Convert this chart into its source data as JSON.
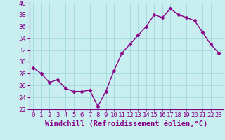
{
  "x": [
    0,
    1,
    2,
    3,
    4,
    5,
    6,
    7,
    8,
    9,
    10,
    11,
    12,
    13,
    14,
    15,
    16,
    17,
    18,
    19,
    20,
    21,
    22,
    23
  ],
  "y": [
    29,
    28,
    26.5,
    27,
    25.5,
    25,
    25,
    25.2,
    22.5,
    25,
    28.5,
    31.5,
    33,
    34.5,
    36,
    38,
    37.5,
    39,
    38,
    37.5,
    37,
    35,
    33,
    31.5
  ],
  "line_color": "#880088",
  "marker": "D",
  "marker_size": 2.5,
  "background_color": "#c8eef0",
  "grid_color": "#a0d8dc",
  "xlabel": "Windchill (Refroidissement éolien,°C)",
  "xlabel_fontsize": 7.5,
  "tick_fontsize": 6.5,
  "ylim": [
    22,
    40
  ],
  "xlim": [
    -0.5,
    23.5
  ],
  "yticks": [
    22,
    24,
    26,
    28,
    30,
    32,
    34,
    36,
    38,
    40
  ],
  "xticks": [
    0,
    1,
    2,
    3,
    4,
    5,
    6,
    7,
    8,
    9,
    10,
    11,
    12,
    13,
    14,
    15,
    16,
    17,
    18,
    19,
    20,
    21,
    22,
    23
  ]
}
